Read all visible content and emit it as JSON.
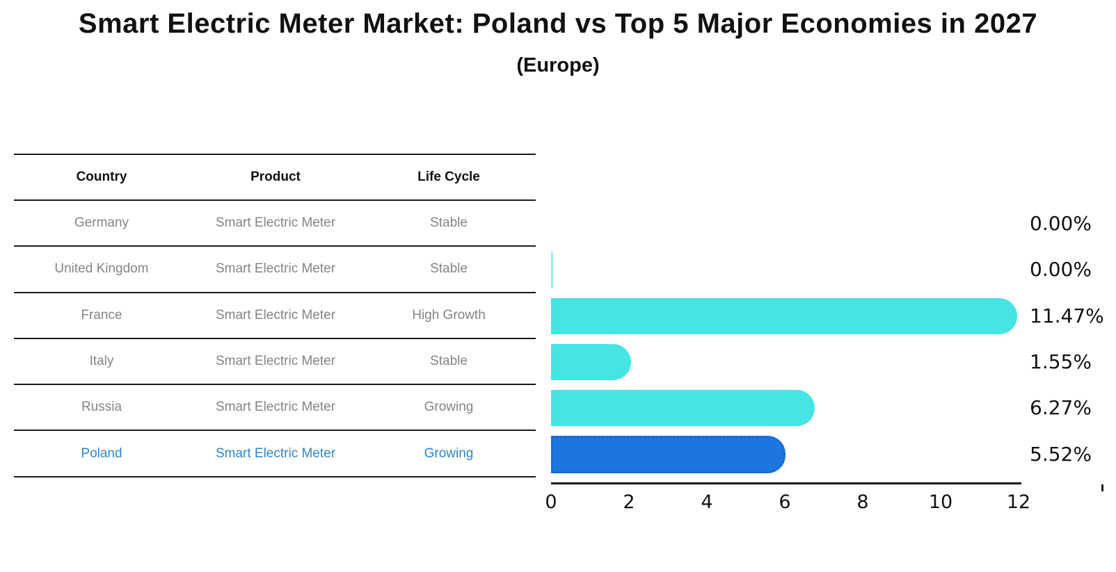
{
  "title": "Smart Electric Meter Market: Poland vs Top 5 Major Economies in 2027",
  "subtitle": "(Europe)",
  "table": {
    "headers": [
      "Country",
      "Product",
      "Life Cycle"
    ],
    "rows": [
      {
        "country": "Germany",
        "product": "Smart Electric Meter",
        "life_cycle": "Stable",
        "highlighted": false
      },
      {
        "country": "United Kingdom",
        "product": "Smart Electric Meter",
        "life_cycle": "Stable",
        "highlighted": false
      },
      {
        "country": "France",
        "product": "Smart Electric Meter",
        "life_cycle": "High Growth",
        "highlighted": false
      },
      {
        "country": "Italy",
        "product": "Smart Electric Meter",
        "life_cycle": "Stable",
        "highlighted": false
      },
      {
        "country": "Russia",
        "product": "Smart Electric Meter",
        "life_cycle": "Growing",
        "highlighted": false
      },
      {
        "country": "Poland",
        "product": "Smart Electric Meter",
        "life_cycle": "Growing",
        "highlighted": true
      }
    ]
  },
  "chart_data": {
    "type": "bar",
    "orientation": "horizontal",
    "categories": [
      "Germany",
      "United Kingdom",
      "France",
      "Italy",
      "Russia",
      "Poland"
    ],
    "values": [
      0.0,
      0.0,
      11.47,
      1.55,
      6.27,
      5.52
    ],
    "value_labels": [
      "0.00%",
      "0.00%",
      "11.47%",
      "1.55%",
      "6.27%",
      "5.52%"
    ],
    "xlim": [
      0,
      12
    ],
    "x_ticks": [
      "0",
      "2",
      "4",
      "6",
      "8",
      "10",
      "12"
    ],
    "xlabel": "",
    "ylabel": "",
    "grid": false,
    "legend_position": "none",
    "bar_color": "#46e4e3",
    "highlight_color": "#1b76e0",
    "highlight_index": 5,
    "highlight_border_style": "dotted",
    "zero_bar_sliver_category": "United Kingdom"
  },
  "colors": {
    "title_text": "#111111",
    "table_header_text": "#111111",
    "row_text": "#848484",
    "highlight_row_text": "#2e86c8",
    "axis_color": "#1a1a1a"
  }
}
